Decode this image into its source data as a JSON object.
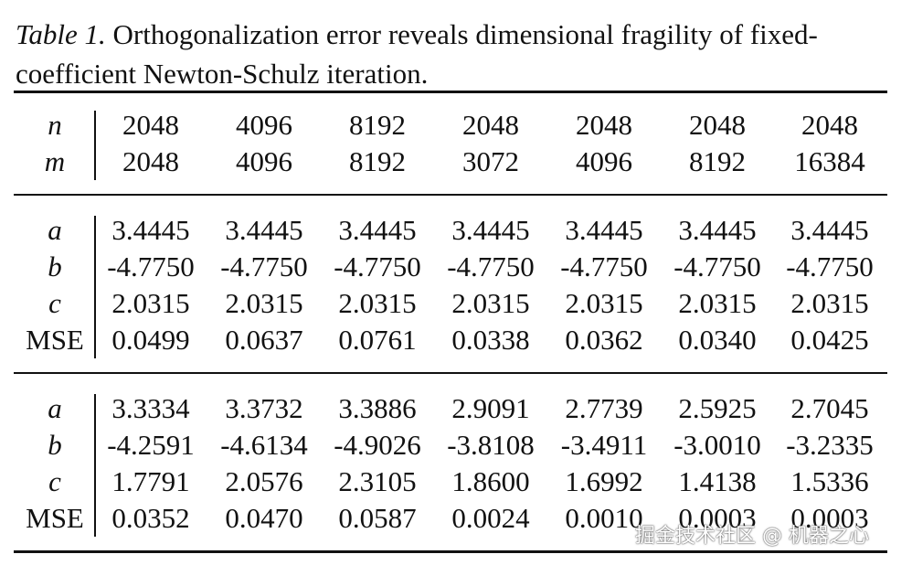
{
  "caption": {
    "label": "Table 1.",
    "text": "Orthogonalization error reveals dimensional fragility of fixed-coefficient Newton-Schulz iteration."
  },
  "table": {
    "groups": [
      {
        "rows": [
          {
            "label": "n",
            "cells": [
              "2048",
              "4096",
              "8192",
              "2048",
              "2048",
              "2048",
              "2048"
            ]
          },
          {
            "label": "m",
            "cells": [
              "2048",
              "4096",
              "8192",
              "3072",
              "4096",
              "8192",
              "16384"
            ]
          }
        ]
      },
      {
        "rows": [
          {
            "label": "a",
            "cells": [
              "3.4445",
              "3.4445",
              "3.4445",
              "3.4445",
              "3.4445",
              "3.4445",
              "3.4445"
            ]
          },
          {
            "label": "b",
            "cells": [
              "-4.7750",
              "-4.7750",
              "-4.7750",
              "-4.7750",
              "-4.7750",
              "-4.7750",
              "-4.7750"
            ]
          },
          {
            "label": "c",
            "cells": [
              "2.0315",
              "2.0315",
              "2.0315",
              "2.0315",
              "2.0315",
              "2.0315",
              "2.0315"
            ]
          },
          {
            "label": "MSE",
            "cells": [
              "0.0499",
              "0.0637",
              "0.0761",
              "0.0338",
              "0.0362",
              "0.0340",
              "0.0425"
            ]
          }
        ]
      },
      {
        "rows": [
          {
            "label": "a",
            "cells": [
              "3.3334",
              "3.3732",
              "3.3886",
              "2.9091",
              "2.7739",
              "2.5925",
              "2.7045"
            ]
          },
          {
            "label": "b",
            "cells": [
              "-4.2591",
              "-4.6134",
              "-4.9026",
              "-3.8108",
              "-3.4911",
              "-3.0010",
              "-3.2335"
            ]
          },
          {
            "label": "c",
            "cells": [
              "1.7791",
              "2.0576",
              "2.3105",
              "1.8600",
              "1.6992",
              "1.4138",
              "1.5336"
            ]
          },
          {
            "label": "MSE",
            "cells": [
              "0.0352",
              "0.0470",
              "0.0587",
              "0.0024",
              "0.0010",
              "0.0003",
              "0.0003"
            ]
          }
        ]
      }
    ]
  },
  "watermark": "掘金技术社区 @ 机器之心"
}
